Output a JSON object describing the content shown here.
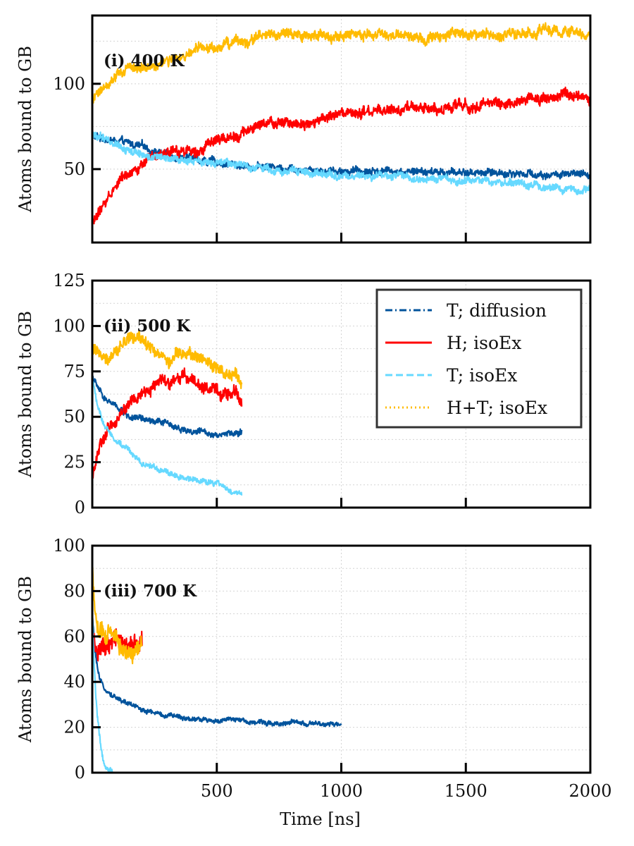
{
  "chart_data": [
    {
      "type": "line",
      "panel_label": "(i) 400 K",
      "xlabel": "",
      "ylabel": "Atoms bound to GB",
      "xlim": [
        0,
        2000
      ],
      "ylim": [
        7,
        140
      ],
      "xticks": [
        500,
        1000,
        1500,
        2000
      ],
      "show_xtick_labels": false,
      "yticks": [
        50,
        100
      ],
      "grid": true,
      "series": [
        {
          "name": "T; diffusion",
          "color": "#00539c",
          "noise": 2.5,
          "x": [
            0,
            50,
            100,
            200,
            300,
            400,
            500,
            600,
            800,
            1000,
            1200,
            1400,
            1600,
            1800,
            2000
          ],
          "y": [
            69,
            68,
            66,
            63,
            59,
            56,
            54,
            52,
            51,
            49,
            49,
            48,
            48,
            47,
            46
          ]
        },
        {
          "name": "H; isoEx",
          "color": "#ff0000",
          "noise": 3.5,
          "x": [
            0,
            50,
            100,
            150,
            200,
            300,
            400,
            500,
            600,
            700,
            800,
            1000,
            1200,
            1400,
            1600,
            1800,
            1900,
            2000
          ],
          "y": [
            18,
            30,
            42,
            49,
            53,
            58,
            62,
            66,
            72,
            76,
            77,
            81,
            84,
            86,
            88,
            92,
            93,
            90
          ]
        },
        {
          "name": "T; isoEx",
          "color": "#66d9ff",
          "noise": 2.5,
          "x": [
            0,
            50,
            100,
            150,
            200,
            300,
            400,
            500,
            600,
            800,
            1000,
            1200,
            1400,
            1600,
            1800,
            2000
          ],
          "y": [
            70,
            68,
            65,
            61,
            58,
            56,
            55,
            53,
            52,
            49,
            46,
            45,
            44,
            43,
            40,
            37
          ]
        },
        {
          "name": "H+T; isoEx",
          "color": "#ffbb00",
          "noise": 3.5,
          "x": [
            0,
            50,
            100,
            150,
            200,
            300,
            400,
            500,
            600,
            700,
            800,
            1000,
            1200,
            1400,
            1600,
            1800,
            2000
          ],
          "y": [
            88,
            100,
            106,
            108,
            110,
            113,
            118,
            121,
            125,
            128,
            128,
            128,
            128,
            128,
            129,
            130,
            128
          ]
        }
      ]
    },
    {
      "type": "line",
      "panel_label": "(ii) 500 K",
      "xlabel": "",
      "ylabel": "Atoms bound to GB",
      "xlim": [
        0,
        2000
      ],
      "ylim": [
        0,
        125
      ],
      "xticks": [
        500,
        1000,
        1500,
        2000
      ],
      "show_xtick_labels": false,
      "yticks": [
        0,
        25,
        50,
        75,
        100,
        125
      ],
      "grid": true,
      "legend": {
        "placement": "top-right",
        "entries": [
          {
            "label": "T; diffusion",
            "color": "#00539c",
            "style": "dashdot"
          },
          {
            "label": "H; isoEx",
            "color": "#ff0000",
            "style": "solid"
          },
          {
            "label": "T; isoEx",
            "color": "#66d9ff",
            "style": "dashed"
          },
          {
            "label": "H+T; isoEx",
            "color": "#ffbb00",
            "style": "dotted"
          }
        ]
      },
      "series": [
        {
          "name": "T; diffusion",
          "color": "#00539c",
          "noise": 2,
          "x": [
            0,
            25,
            50,
            100,
            150,
            200,
            300,
            400,
            500,
            600
          ],
          "y": [
            72,
            65,
            60,
            55,
            50,
            48,
            46,
            42,
            41,
            41
          ]
        },
        {
          "name": "H; isoEx",
          "color": "#ff0000",
          "noise": 4,
          "x": [
            0,
            25,
            50,
            100,
            150,
            200,
            250,
            300,
            400,
            450,
            500,
            550,
            600
          ],
          "y": [
            18,
            32,
            38,
            50,
            57,
            62,
            68,
            70,
            72,
            66,
            62,
            63,
            60
          ]
        },
        {
          "name": "T; isoEx",
          "color": "#66d9ff",
          "noise": 1.8,
          "x": [
            0,
            25,
            50,
            100,
            150,
            200,
            300,
            400,
            500,
            550,
            600
          ],
          "y": [
            70,
            55,
            45,
            37,
            31,
            25,
            19,
            15,
            13,
            9,
            8
          ]
        },
        {
          "name": "H+T; isoEx",
          "color": "#ffbb00",
          "noise": 4,
          "x": [
            0,
            25,
            50,
            100,
            150,
            200,
            250,
            300,
            400,
            500,
            550,
            600
          ],
          "y": [
            86,
            85,
            84,
            88,
            92,
            91,
            86,
            82,
            83,
            78,
            72,
            70
          ]
        }
      ]
    },
    {
      "type": "line",
      "panel_label": "(iii) 700 K",
      "xlabel": "Time [ns]",
      "ylabel": "Atoms bound to GB",
      "xlim": [
        0,
        2000
      ],
      "ylim": [
        0,
        100
      ],
      "xticks": [
        500,
        1000,
        1500,
        2000
      ],
      "show_xtick_labels": true,
      "yticks": [
        0,
        20,
        40,
        60,
        80,
        100
      ],
      "grid": true,
      "series": [
        {
          "name": "T; diffusion",
          "color": "#00539c",
          "noise": 1.2,
          "x": [
            0,
            5,
            10,
            20,
            30,
            50,
            100,
            150,
            200,
            300,
            400,
            500,
            600,
            700,
            800,
            900,
            1000
          ],
          "y": [
            70,
            62,
            55,
            46,
            40,
            37,
            33,
            30,
            28,
            25,
            24,
            23,
            23,
            22,
            22,
            21,
            21
          ]
        },
        {
          "name": "H; isoEx",
          "color": "#ff0000",
          "noise": 5,
          "x": [
            0,
            10,
            20,
            30,
            50,
            80,
            100,
            150,
            200
          ],
          "y": [
            60,
            55,
            52,
            54,
            56,
            56,
            57,
            56,
            57
          ]
        },
        {
          "name": "T; isoEx",
          "color": "#66d9ff",
          "noise": 1.5,
          "x": [
            0,
            5,
            10,
            20,
            30,
            40,
            50,
            60,
            70,
            80
          ],
          "y": [
            70,
            55,
            42,
            25,
            15,
            8,
            4,
            2,
            1,
            0
          ]
        },
        {
          "name": "H+T; isoEx",
          "color": "#ffbb00",
          "noise": 5,
          "x": [
            0,
            5,
            10,
            20,
            30,
            50,
            80,
            100,
            150,
            200
          ],
          "y": [
            90,
            80,
            72,
            64,
            62,
            60,
            58,
            57,
            56,
            57
          ]
        }
      ]
    }
  ]
}
